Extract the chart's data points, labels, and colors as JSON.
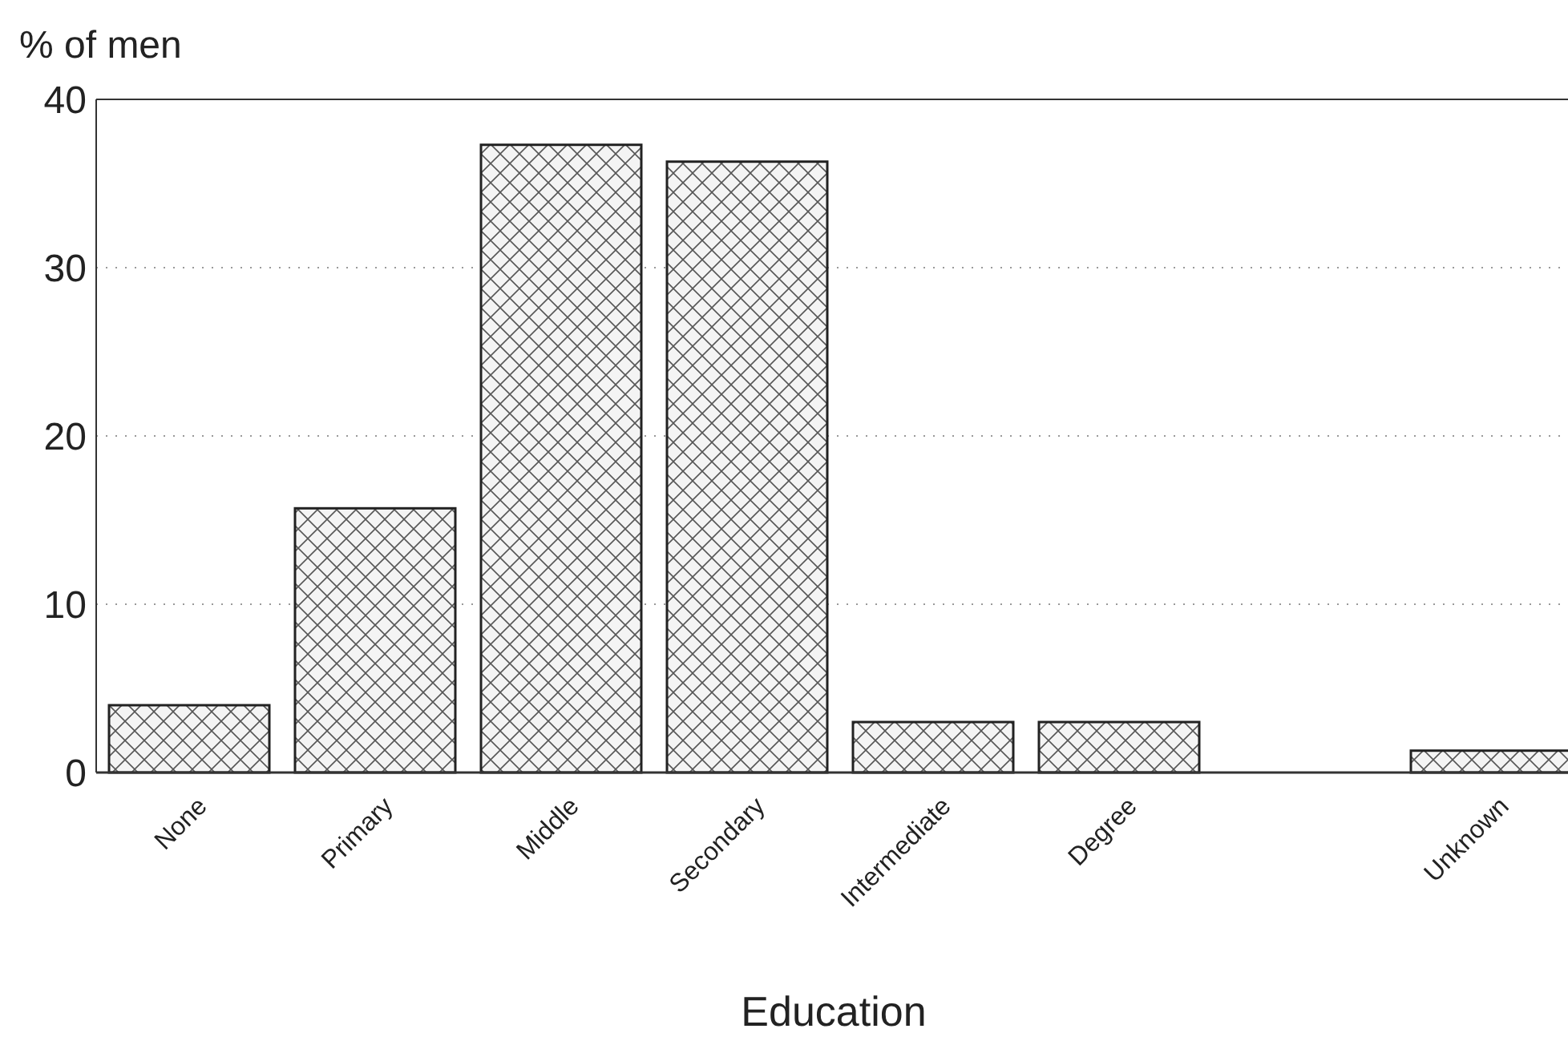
{
  "chart_data": {
    "type": "bar",
    "xlabel": "Education",
    "ylabel": "% of men",
    "categories": [
      "None",
      "Primary",
      "Middle",
      "Secondary",
      "Intermediate",
      "Degree",
      null,
      "Unknown"
    ],
    "values": [
      4.0,
      15.7,
      37.3,
      36.3,
      3.0,
      3.0,
      null,
      1.3
    ],
    "color": "#222222",
    "ylim": [
      0,
      40
    ],
    "yticks": [
      0,
      10,
      20,
      30,
      40
    ],
    "grid": "y"
  }
}
